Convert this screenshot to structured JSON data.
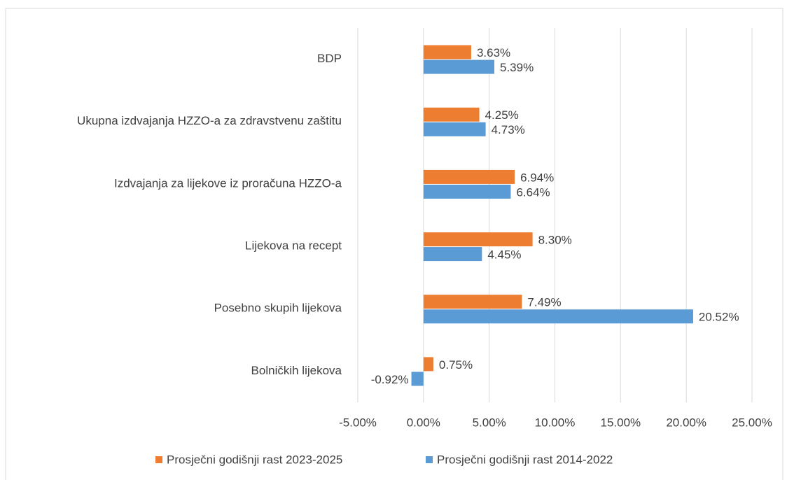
{
  "chart_data": {
    "type": "hbar",
    "categories": [
      "BDP",
      "Ukupna izdvajanja HZZO-a za zdravstvenu zaštitu",
      "Izdvajanja za lijekove iz proračuna HZZO-a",
      "Lijekova na recept",
      "Posebno skupih lijekova",
      "Bolničkih lijekova"
    ],
    "series": [
      {
        "name": "Prosječni godišnji rast 2023-2025",
        "color": "#ed7d31",
        "values": [
          3.63,
          4.25,
          6.94,
          8.3,
          7.49,
          0.75
        ],
        "value_labels": [
          "3.63%",
          "4.25%",
          "6.94%",
          "8.30%",
          "7.49%",
          "0.75%"
        ]
      },
      {
        "name": "Prosječni godišnji rast 2014-2022",
        "color": "#5b9bd5",
        "values": [
          5.39,
          4.73,
          6.64,
          4.45,
          20.52,
          -0.92
        ],
        "value_labels": [
          "5.39%",
          "4.73%",
          "6.64%",
          "4.45%",
          "20.52%",
          "-0.92%"
        ]
      }
    ],
    "xlim": [
      -5,
      25
    ],
    "xticks": [
      {
        "value": -5,
        "label": "-5.00%"
      },
      {
        "value": 0,
        "label": "0.00%"
      },
      {
        "value": 5,
        "label": "5.00%"
      },
      {
        "value": 10,
        "label": "10.00%"
      },
      {
        "value": 15,
        "label": "15.00%"
      },
      {
        "value": 20,
        "label": "20.00%"
      },
      {
        "value": 25,
        "label": "25.00%"
      }
    ],
    "grid": true,
    "legend": "bottom"
  }
}
